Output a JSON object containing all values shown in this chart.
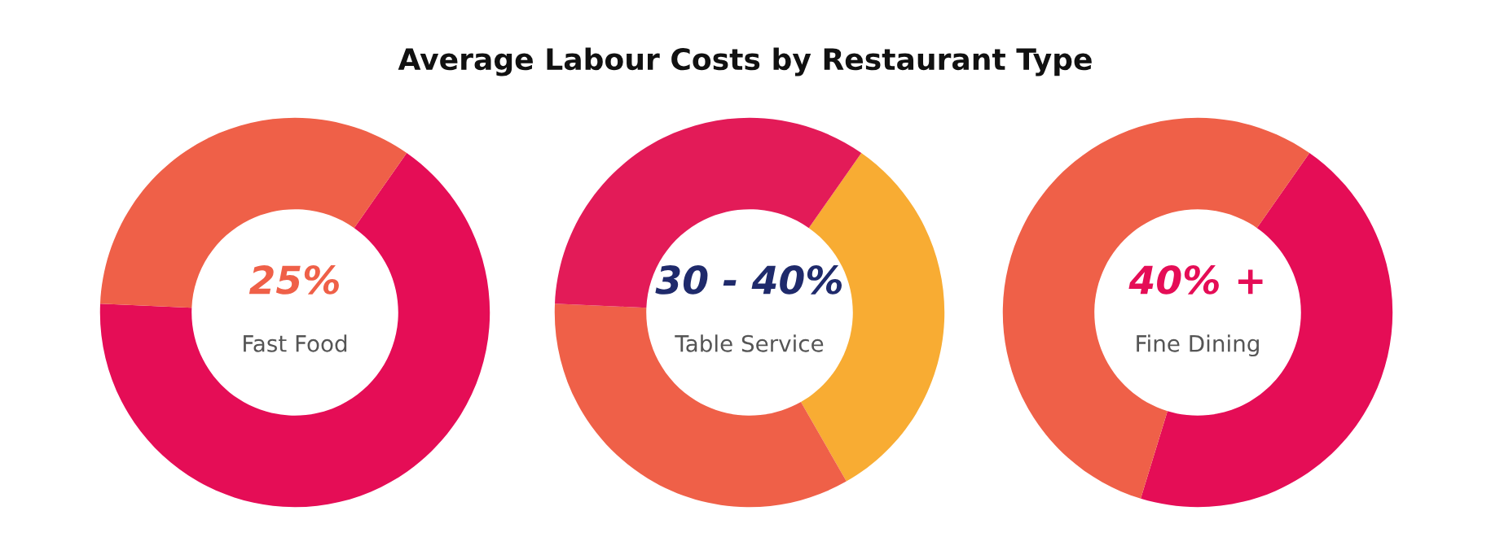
{
  "chart_data": [
    {
      "type": "donut",
      "title": "Average Labour Costs by Restaurant Type",
      "categories": [
        null,
        null
      ],
      "values": [
        66,
        34
      ],
      "colors": [
        "#e50d56",
        "#ef6048"
      ],
      "annotations": [
        "25%",
        "Fast Food"
      ]
    },
    {
      "type": "donut",
      "categories": [
        null,
        null,
        null
      ],
      "values": [
        32,
        34,
        34
      ],
      "colors": [
        "#f8ac33",
        "#ef6048",
        "#e31b58"
      ],
      "annotations": [
        "30 - 40%",
        "Table Service"
      ]
    },
    {
      "type": "donut",
      "categories": [
        null,
        null
      ],
      "values": [
        45,
        55
      ],
      "colors": [
        "#e50d56",
        "#ef6048"
      ],
      "annotations": [
        "40% +",
        "Fine Dining"
      ]
    }
  ]
}
